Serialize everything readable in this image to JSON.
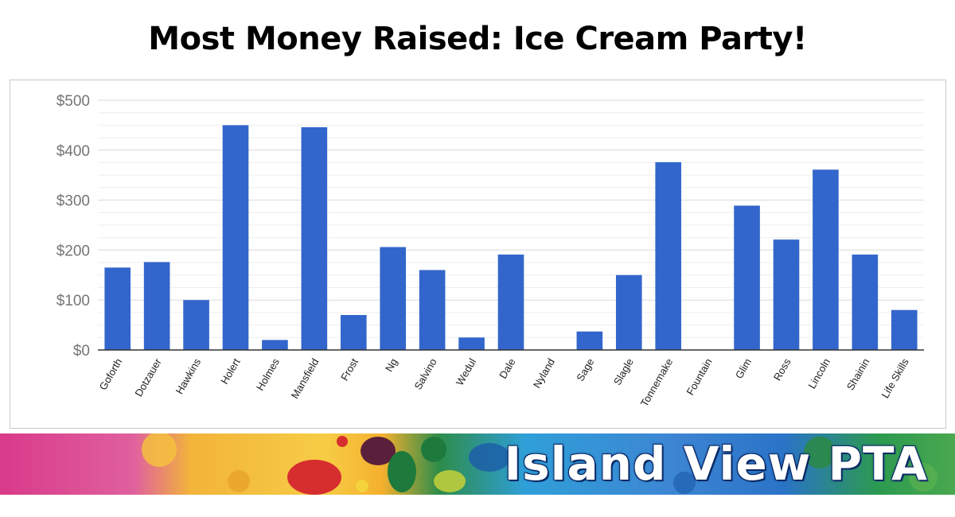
{
  "title": "Most Money Raised: Ice Cream Party!",
  "banner": {
    "text": "Island View PTA"
  },
  "colors": {
    "bar": "#3366cc",
    "grid_major": "#d9d9d9",
    "grid_minor": "#eeeeee",
    "axis_text": "#757575",
    "baseline": "#333333"
  },
  "chart_data": {
    "type": "bar",
    "title": "",
    "xlabel": "",
    "ylabel": "",
    "ylim": [
      0,
      500
    ],
    "yticks": [
      0,
      100,
      200,
      300,
      400,
      500
    ],
    "ytick_labels": [
      "$0",
      "$100",
      "$200",
      "$300",
      "$400",
      "$500"
    ],
    "grid": true,
    "categories": [
      "Goforth",
      "Dotzauer",
      "Hawkins",
      "Holert",
      "Holmes",
      "Mansfield",
      "Frost",
      "Ng",
      "Salvino",
      "Wedul",
      "Dale",
      "Nyland",
      "Sage",
      "Slagle",
      "Tonnemake",
      "Fountain",
      "Glim",
      "Ross",
      "Lincoln",
      "Shainin",
      "Life Skills"
    ],
    "values": [
      165,
      176,
      100,
      450,
      20,
      446,
      70,
      206,
      160,
      25,
      191,
      0,
      37,
      150,
      376,
      0,
      289,
      221,
      361,
      191,
      80
    ]
  }
}
